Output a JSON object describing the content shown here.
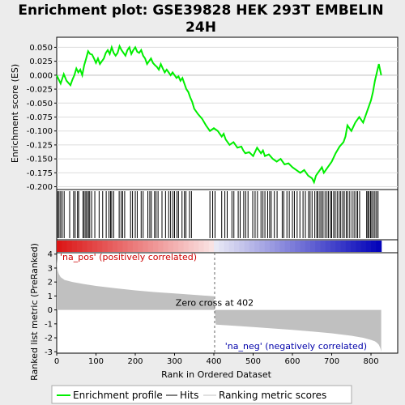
{
  "chart_data": {
    "type": "line",
    "title_lines": [
      "Enrichment plot: GSE39828 HEK 293T EMBELIN",
      "24H"
    ],
    "es_panel": {
      "ylabel": "Enrichment score (ES)",
      "ylim": [
        -0.205,
        0.068
      ],
      "yticks": [
        0.05,
        0.025,
        0.0,
        -0.025,
        -0.05,
        -0.075,
        -0.1,
        -0.125,
        -0.15,
        -0.175,
        -0.2
      ],
      "ytick_labels": [
        "0.050",
        "0.025",
        "0.000",
        "-0.025",
        "-0.050",
        "-0.075",
        "-0.100",
        "-0.125",
        "-0.150",
        "-0.175",
        "-0.200"
      ],
      "line_color": "#00ee00",
      "series": {
        "name": "Enrichment profile",
        "x": [
          0,
          10,
          18,
          25,
          35,
          40,
          45,
          50,
          55,
          60,
          65,
          70,
          75,
          80,
          85,
          90,
          95,
          100,
          105,
          110,
          115,
          120,
          125,
          130,
          135,
          140,
          145,
          150,
          155,
          160,
          165,
          170,
          175,
          180,
          185,
          190,
          195,
          200,
          205,
          210,
          215,
          220,
          225,
          230,
          235,
          240,
          245,
          250,
          255,
          260,
          265,
          270,
          275,
          280,
          285,
          290,
          295,
          300,
          305,
          310,
          315,
          320,
          325,
          330,
          335,
          340,
          345,
          350,
          360,
          370,
          380,
          390,
          400,
          410,
          420,
          425,
          430,
          440,
          450,
          460,
          470,
          475,
          480,
          490,
          500,
          510,
          520,
          525,
          530,
          540,
          550,
          560,
          570,
          580,
          590,
          600,
          610,
          620,
          630,
          640,
          650,
          655,
          660,
          665,
          670,
          675,
          680,
          690,
          700,
          710,
          720,
          730,
          735,
          740,
          745,
          750,
          760,
          770,
          780,
          790,
          800,
          805,
          810,
          815,
          820,
          826
        ],
        "y": [
          0.0,
          -0.015,
          0.002,
          -0.01,
          -0.018,
          -0.008,
          0.0,
          0.012,
          0.005,
          0.01,
          0.0,
          0.018,
          0.03,
          0.043,
          0.038,
          0.037,
          0.03,
          0.022,
          0.03,
          0.02,
          0.025,
          0.03,
          0.04,
          0.045,
          0.038,
          0.05,
          0.04,
          0.035,
          0.04,
          0.052,
          0.045,
          0.04,
          0.035,
          0.045,
          0.05,
          0.038,
          0.045,
          0.05,
          0.042,
          0.04,
          0.045,
          0.035,
          0.03,
          0.02,
          0.025,
          0.03,
          0.022,
          0.018,
          0.015,
          0.01,
          0.02,
          0.012,
          0.005,
          0.01,
          0.005,
          0.0,
          0.005,
          0.0,
          -0.005,
          -0.002,
          -0.01,
          -0.005,
          -0.015,
          -0.025,
          -0.03,
          -0.04,
          -0.048,
          -0.06,
          -0.07,
          -0.078,
          -0.09,
          -0.1,
          -0.095,
          -0.1,
          -0.11,
          -0.105,
          -0.115,
          -0.125,
          -0.12,
          -0.13,
          -0.128,
          -0.135,
          -0.14,
          -0.138,
          -0.145,
          -0.13,
          -0.14,
          -0.135,
          -0.145,
          -0.142,
          -0.15,
          -0.155,
          -0.15,
          -0.16,
          -0.158,
          -0.165,
          -0.17,
          -0.175,
          -0.17,
          -0.18,
          -0.185,
          -0.192,
          -0.18,
          -0.175,
          -0.17,
          -0.165,
          -0.175,
          -0.165,
          -0.155,
          -0.14,
          -0.128,
          -0.12,
          -0.11,
          -0.09,
          -0.095,
          -0.1,
          -0.085,
          -0.075,
          -0.085,
          -0.065,
          -0.045,
          -0.03,
          -0.01,
          0.005,
          0.02,
          0.0
        ]
      },
      "hit_positions": [
        3,
        6,
        10,
        14,
        19,
        33,
        43,
        47,
        53,
        56,
        67,
        70,
        74,
        77,
        81,
        84,
        89,
        97,
        108,
        117,
        126,
        133,
        137,
        140,
        145,
        159,
        164,
        168,
        173,
        188,
        193,
        200,
        205,
        215,
        220,
        232,
        237,
        241,
        249,
        253,
        258,
        268,
        277,
        285,
        290,
        296,
        300,
        306,
        310,
        319,
        325,
        329,
        338,
        343,
        390,
        397,
        403,
        420,
        428,
        434,
        446,
        451,
        462,
        467,
        476,
        481,
        487,
        499,
        505,
        511,
        520,
        525,
        530,
        537,
        542,
        546,
        554,
        561,
        574,
        578,
        586,
        592,
        600,
        605,
        612,
        619,
        627,
        633,
        641,
        645,
        650,
        657,
        662,
        665,
        670,
        674,
        678,
        683,
        688,
        692,
        697,
        700,
        705,
        709,
        714,
        719,
        723,
        728,
        732,
        737,
        741,
        746,
        752,
        757,
        762,
        766,
        771,
        789,
        792,
        795,
        799,
        802,
        806,
        810,
        814,
        818
      ]
    },
    "ranked_panel": {
      "ylabel": "Ranked list metric (PreRanked)",
      "xlabel": "Rank in Ordered Dataset",
      "ylim": [
        -3.1,
        4.1
      ],
      "yticks": [
        4,
        3,
        2,
        1,
        0,
        -1,
        -2,
        -3
      ],
      "ytick_labels": [
        "4",
        "3",
        "2",
        "1",
        "0",
        "-1",
        "-2",
        "-3"
      ],
      "xlim": [
        0,
        868
      ],
      "xticks": [
        0,
        100,
        200,
        300,
        400,
        500,
        600,
        700,
        800
      ],
      "xtick_labels": [
        "0",
        "100",
        "200",
        "300",
        "400",
        "500",
        "600",
        "700",
        "800"
      ],
      "fill_color": "#c0c0c0",
      "series": {
        "name": "Ranking metric scores",
        "x": [
          0,
          2,
          5,
          10,
          20,
          40,
          70,
          100,
          150,
          200,
          250,
          300,
          350,
          400,
          402,
          405,
          450,
          500,
          550,
          600,
          650,
          700,
          750,
          780,
          800,
          810,
          815,
          820,
          824,
          826
        ],
        "y": [
          3.7,
          2.9,
          2.6,
          2.35,
          2.15,
          2.0,
          1.85,
          1.72,
          1.55,
          1.4,
          1.28,
          1.18,
          1.08,
          0.98,
          0.0,
          -1.05,
          -1.13,
          -1.23,
          -1.33,
          -1.43,
          -1.55,
          -1.68,
          -1.85,
          -2.0,
          -2.15,
          -2.25,
          -2.35,
          -2.5,
          -2.75,
          -3.0
        ]
      },
      "zero_cross_rank": 402,
      "zero_cross_label": "Zero cross at 402",
      "pos_label": "'na_pos' (positively correlated)",
      "neg_label": "'na_neg' (negatively correlated)",
      "pos_label_color": "#cc0000",
      "neg_label_color": "#0000aa"
    },
    "n_genes": 826,
    "legend": {
      "placement": "bottom",
      "items": [
        {
          "label": "Enrichment profile",
          "color": "#00ee00"
        },
        {
          "label": "Hits",
          "color": "#000000"
        },
        {
          "label": "Ranking metric scores",
          "color": "#c0c0c0"
        }
      ]
    }
  }
}
